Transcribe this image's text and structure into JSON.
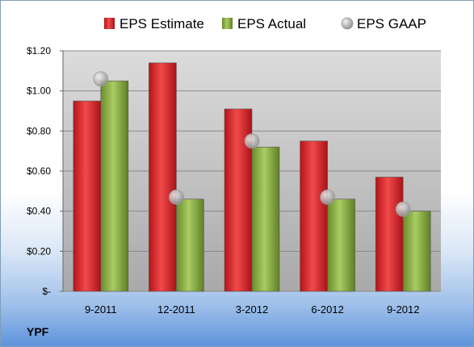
{
  "chart_data": {
    "type": "bar",
    "categories": [
      "9-2011",
      "12-2011",
      "3-2012",
      "6-2012",
      "9-2012"
    ],
    "series": [
      {
        "name": "EPS Estimate",
        "values": [
          0.95,
          1.14,
          0.91,
          0.75,
          0.57
        ],
        "color": "#e0262c",
        "kind": "bar"
      },
      {
        "name": "EPS Actual",
        "values": [
          1.05,
          0.46,
          0.72,
          0.46,
          0.4
        ],
        "color": "#8db543",
        "kind": "bar"
      },
      {
        "name": "EPS GAAP",
        "values": [
          1.06,
          0.47,
          0.75,
          0.47,
          0.41
        ],
        "color": "#b8b8b8",
        "kind": "marker"
      }
    ],
    "ylim": [
      0,
      1.2
    ],
    "yticks": [
      0,
      0.2,
      0.4,
      0.6,
      0.8,
      1.0,
      1.2
    ],
    "ytick_labels": [
      "$-",
      "$0.20",
      "$0.40",
      "$0.60",
      "$0.80",
      "$1.00",
      "$1.20"
    ],
    "legend_position": "top",
    "grid": true
  },
  "ticker": "YPF"
}
